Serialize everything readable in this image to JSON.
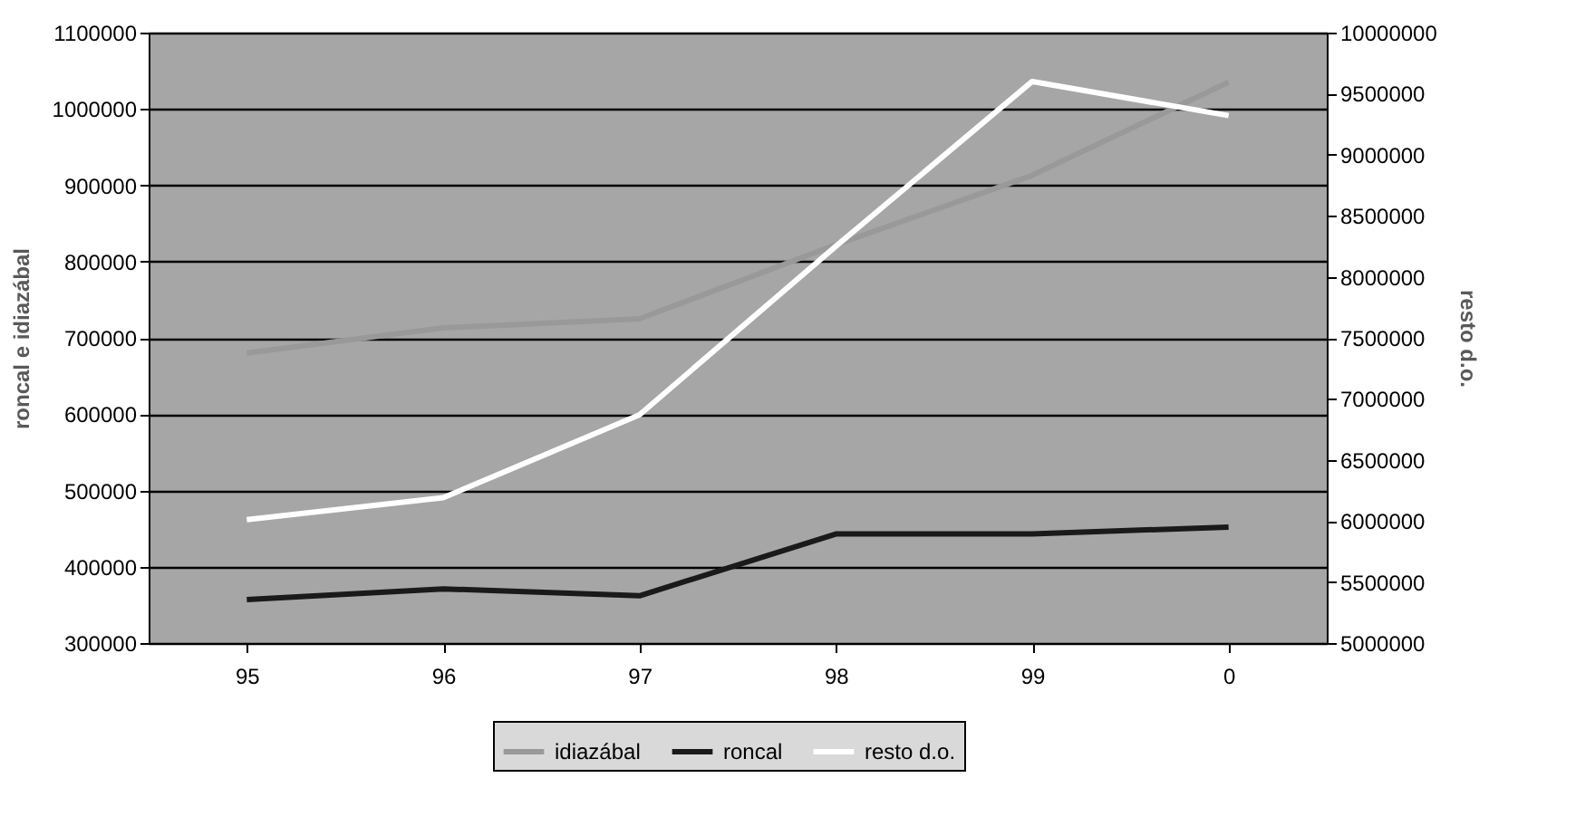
{
  "chart_data": {
    "type": "line",
    "xlabel": null,
    "ylabel": "roncal e idiazábal",
    "y2label": "resto d.o.",
    "categories": [
      "95",
      "96",
      "97",
      "98",
      "99",
      "0"
    ],
    "series": [
      {
        "name": "idiazábal",
        "color": "#999999",
        "values": [
          680000,
          713000,
          725000,
          822000,
          913000,
          1035000
        ]
      },
      {
        "name": "roncal",
        "color": "#1a1a1a",
        "values": [
          357000,
          371000,
          362000,
          443000,
          443000,
          452000
        ]
      },
      {
        "name": "resto d.o.",
        "color": "#ffffff",
        "axis": "y2",
        "values": [
          6010000,
          6190000,
          6870000,
          8250000,
          9600000,
          9320000
        ]
      }
    ],
    "ylim": [
      300000,
      1100000
    ],
    "yticks": [
      300000,
      400000,
      500000,
      600000,
      700000,
      800000,
      900000,
      1000000,
      1100000
    ],
    "y2lim": [
      5000000,
      10000000
    ],
    "y2ticks": [
      5000000,
      5500000,
      6000000,
      6500000,
      7000000,
      7500000,
      8000000,
      8500000,
      9000000,
      9500000,
      10000000
    ],
    "grid": "y",
    "legend": "bottom",
    "marker": "none",
    "line_style": "solid"
  }
}
